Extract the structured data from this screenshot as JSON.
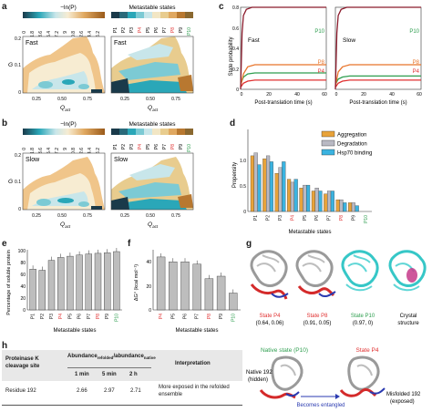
{
  "panels": {
    "a": {
      "label": "a",
      "colorbar_title": "−ln(P)",
      "colorbar_ticks": [
        "0",
        "1.8",
        "3.6",
        "5.4",
        "7.2",
        "9",
        "10.8",
        "12.6",
        "14.4",
        "16.2"
      ],
      "map_title": "Metastable states",
      "state_ticks": [
        "P1",
        "P2",
        "P3",
        "P4",
        "P5",
        "P6",
        "P7",
        "P8",
        "P9",
        "P10"
      ],
      "left_text": "Fast",
      "right_text": "Fast",
      "ylabel": "G",
      "xlabel": "Q",
      "xlabel_sub": "act",
      "yticks": [
        "0",
        "0.1",
        "0.2"
      ],
      "xticks": [
        "0.25",
        "0.50",
        "0.75"
      ]
    },
    "b": {
      "label": "b",
      "colorbar_title": "−ln(P)",
      "colorbar_ticks": [
        "0",
        "1.8",
        "3.6",
        "5.4",
        "7.2",
        "9",
        "10.8",
        "12.6",
        "14.4",
        "16.2"
      ],
      "map_title": "Metastable states",
      "state_ticks": [
        "P1",
        "P2",
        "P3",
        "P4",
        "P5",
        "P6",
        "P7",
        "P8",
        "P9",
        "P10"
      ],
      "left_text": "Slow",
      "right_text": "Slow",
      "ylabel": "G",
      "xlabel": "Q",
      "xlabel_sub": "act",
      "yticks": [
        "0",
        "0.1",
        "0.2"
      ],
      "xticks": [
        "0.25",
        "0.50",
        "0.75"
      ]
    },
    "c": {
      "label": "c",
      "ylabel": "State probability",
      "xlabel": "Post-translation time (s)",
      "yticks": [
        "0",
        "0.2",
        "0.4",
        "0.6",
        "0.8"
      ],
      "xticks": [
        "0",
        "20",
        "40",
        "60"
      ],
      "left": {
        "text": "Fast",
        "series": [
          "P10",
          "P8",
          "P4"
        ]
      },
      "right": {
        "text": "Slow",
        "series": [
          "P10",
          "P8",
          "P4"
        ]
      }
    },
    "d": {
      "label": "d",
      "ylabel": "Propensity",
      "xlabel": "Metastable states",
      "yticks": [
        "0",
        "0.5",
        "1.0"
      ],
      "legend": [
        "Aggregation",
        "Degradation",
        "Hsp70 binding"
      ]
    },
    "e": {
      "label": "e",
      "ylabel": "Percentage of soluble protein",
      "xlabel": "Metastable states",
      "yticks": [
        "0",
        "20",
        "40",
        "60",
        "80",
        "100"
      ]
    },
    "f": {
      "label": "f",
      "ylabel": "ΔG° (kcal mol⁻¹)",
      "xlabel": "Metastable states",
      "yticks": [
        "0",
        "20",
        "40"
      ]
    },
    "g": {
      "label": "g",
      "items": [
        {
          "name": "State P4",
          "coords": "(0.64, 0.06)"
        },
        {
          "name": "State P8",
          "coords": "(0.91, 0.05)"
        },
        {
          "name": "State P10",
          "coords": "(0.97, 0)"
        },
        {
          "name": "Crystal",
          "coords": "structure"
        }
      ]
    },
    "h": {
      "label": "h",
      "table": {
        "col1": "Proteinase K cleavage site",
        "col2_main": "Abundance",
        "col2_sub1": "refolded",
        "col2_mid": "/abundance",
        "col2_sub2": "native",
        "col3": "Interpretation",
        "times": [
          "1 min",
          "5 min",
          "2 h"
        ],
        "row_site": "Residue 192",
        "values": [
          "2.66",
          "2.97",
          "2.71"
        ],
        "row_interp": "More exposed in the refolded ensemble"
      },
      "native_label": "Native state (P10)",
      "state_label": "State P4",
      "native_192": "Native 192",
      "hidden": "(hidden)",
      "entangled": "Becomes entangled",
      "misfolded": "Misfolded 192",
      "exposed": "(exposed)"
    }
  },
  "chart_data": [
    {
      "panel": "c-left",
      "type": "line",
      "title": "Fast",
      "xlabel": "Post-translation time (s)",
      "ylabel": "State probability",
      "xlim": [
        0,
        60
      ],
      "ylim": [
        0,
        0.8
      ],
      "series": [
        {
          "name": "P10",
          "color": "#2e9e4f",
          "x": [
            0,
            2,
            5,
            10,
            20,
            40,
            60
          ],
          "y": [
            0.05,
            0.12,
            0.15,
            0.16,
            0.16,
            0.16,
            0.16
          ]
        },
        {
          "name": "P8",
          "color": "#e8742a",
          "x": [
            0,
            2,
            5,
            10,
            20,
            40,
            60
          ],
          "y": [
            0.03,
            0.15,
            0.22,
            0.24,
            0.24,
            0.24,
            0.24
          ]
        },
        {
          "name": "P4",
          "color": "#e03030",
          "x": [
            0,
            2,
            5,
            10,
            20,
            40,
            60
          ],
          "y": [
            0.02,
            0.06,
            0.08,
            0.09,
            0.09,
            0.09,
            0.09
          ]
        },
        {
          "name": "",
          "color": "#8b1a2b",
          "x": [
            0,
            1,
            2,
            4,
            8,
            20,
            40,
            60
          ],
          "y": [
            0.0,
            0.55,
            0.72,
            0.78,
            0.8,
            0.81,
            0.82,
            0.82
          ]
        }
      ]
    },
    {
      "panel": "c-right",
      "type": "line",
      "title": "Slow",
      "xlabel": "Post-translation time (s)",
      "ylabel": "State probability",
      "xlim": [
        0,
        60
      ],
      "ylim": [
        0,
        0.8
      ],
      "series": [
        {
          "name": "P10",
          "color": "#2e9e4f",
          "x": [
            0,
            2,
            5,
            10,
            20,
            40,
            60
          ],
          "y": [
            0.05,
            0.1,
            0.12,
            0.13,
            0.13,
            0.13,
            0.13
          ]
        },
        {
          "name": "P8",
          "color": "#e8742a",
          "x": [
            0,
            2,
            5,
            10,
            20,
            40,
            60
          ],
          "y": [
            0.03,
            0.17,
            0.22,
            0.24,
            0.24,
            0.24,
            0.24
          ]
        },
        {
          "name": "P4",
          "color": "#e03030",
          "x": [
            0,
            2,
            5,
            10,
            20,
            40,
            60
          ],
          "y": [
            0.02,
            0.06,
            0.08,
            0.09,
            0.09,
            0.09,
            0.09
          ]
        },
        {
          "name": "",
          "color": "#8b1a2b",
          "x": [
            0,
            1,
            2,
            4,
            8,
            20,
            40,
            60
          ],
          "y": [
            0.0,
            0.55,
            0.72,
            0.78,
            0.8,
            0.81,
            0.82,
            0.82
          ]
        }
      ]
    },
    {
      "panel": "d",
      "type": "bar",
      "xlabel": "Metastable states",
      "ylabel": "Propensity",
      "ylim": [
        0,
        1.4
      ],
      "categories": [
        "P1",
        "P2",
        "P3",
        "P4",
        "P5",
        "P6",
        "P7",
        "P8",
        "P9",
        "P10"
      ],
      "category_colors": [
        "#222222",
        "#222222",
        "#222222",
        "#e03030",
        "#222222",
        "#222222",
        "#222222",
        "#e03030",
        "#222222",
        "#2e9e4f"
      ],
      "series": [
        {
          "name": "Aggregation",
          "color": "#e8a33a",
          "values": [
            0.95,
            0.9,
            0.65,
            0.55,
            0.4,
            0.35,
            0.3,
            0.2,
            0.15,
            0.0
          ]
        },
        {
          "name": "Degradation",
          "color": "#b9b9c3",
          "values": [
            1.0,
            0.95,
            0.75,
            0.5,
            0.45,
            0.4,
            0.35,
            0.2,
            0.15,
            0.0
          ]
        },
        {
          "name": "Hsp70 binding",
          "color": "#3bb3e0",
          "values": [
            0.8,
            0.85,
            0.85,
            0.55,
            0.45,
            0.35,
            0.35,
            0.15,
            0.1,
            0.0
          ]
        }
      ]
    },
    {
      "panel": "e",
      "type": "bar",
      "xlabel": "Metastable states",
      "ylabel": "Percentage of soluble protein",
      "ylim": [
        0,
        100
      ],
      "categories": [
        "P1",
        "P2",
        "P3",
        "P4",
        "P5",
        "P6",
        "P7",
        "P8",
        "P9",
        "P10"
      ],
      "category_colors": [
        "#222222",
        "#222222",
        "#222222",
        "#e03030",
        "#222222",
        "#222222",
        "#222222",
        "#e03030",
        "#222222",
        "#2e9e4f"
      ],
      "values": [
        70,
        68,
        85,
        90,
        92,
        94,
        96,
        97,
        98,
        100
      ]
    },
    {
      "panel": "f",
      "type": "bar",
      "xlabel": "Metastable states",
      "ylabel": "ΔG° (kcal mol⁻¹)",
      "ylim": [
        0,
        50
      ],
      "categories": [
        "P4",
        "P5",
        "P6",
        "P7",
        "P8",
        "P9",
        "P10"
      ],
      "category_colors": [
        "#e03030",
        "#222222",
        "#222222",
        "#222222",
        "#e03030",
        "#222222",
        "#2e9e4f"
      ],
      "values": [
        44,
        40,
        40,
        38,
        26,
        28,
        14
      ]
    }
  ]
}
